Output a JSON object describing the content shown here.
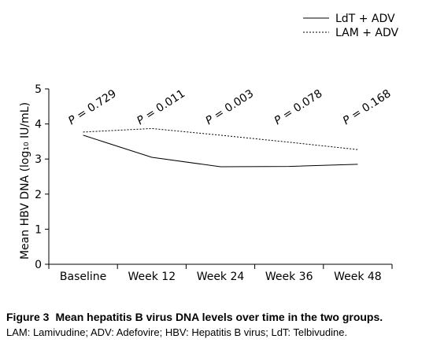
{
  "chart_data": {
    "type": "line",
    "categories": [
      "Baseline",
      "Week 12",
      "Week 24",
      "Week 36",
      "Week 48"
    ],
    "series": [
      {
        "name": "LdT + ADV",
        "style": "solid",
        "values": [
          3.68,
          3.05,
          2.78,
          2.79,
          2.85
        ]
      },
      {
        "name": "LAM + ADV",
        "style": "dotted",
        "values": [
          3.77,
          3.87,
          3.68,
          3.48,
          3.27
        ]
      }
    ],
    "p_values": [
      "P = 0.729",
      "P = 0.011",
      "P = 0.003",
      "P = 0.078",
      "P = 0.168"
    ],
    "ylabel": "Mean HBV DNA (log₁₀ IU/mL)",
    "xlabel": "",
    "ylim": [
      0,
      5
    ],
    "yticks": [
      "0",
      "1",
      "2",
      "3",
      "4",
      "5"
    ],
    "grid": false,
    "legend_position": "top-right"
  },
  "caption": {
    "label": "Figure 3",
    "title": "Mean hepatitis B virus DNA levels over time in the two groups.",
    "note": "LAM: Lamivudine; ADV: Adefovire; HBV: Hepatitis B virus; LdT: Telbivudine."
  }
}
